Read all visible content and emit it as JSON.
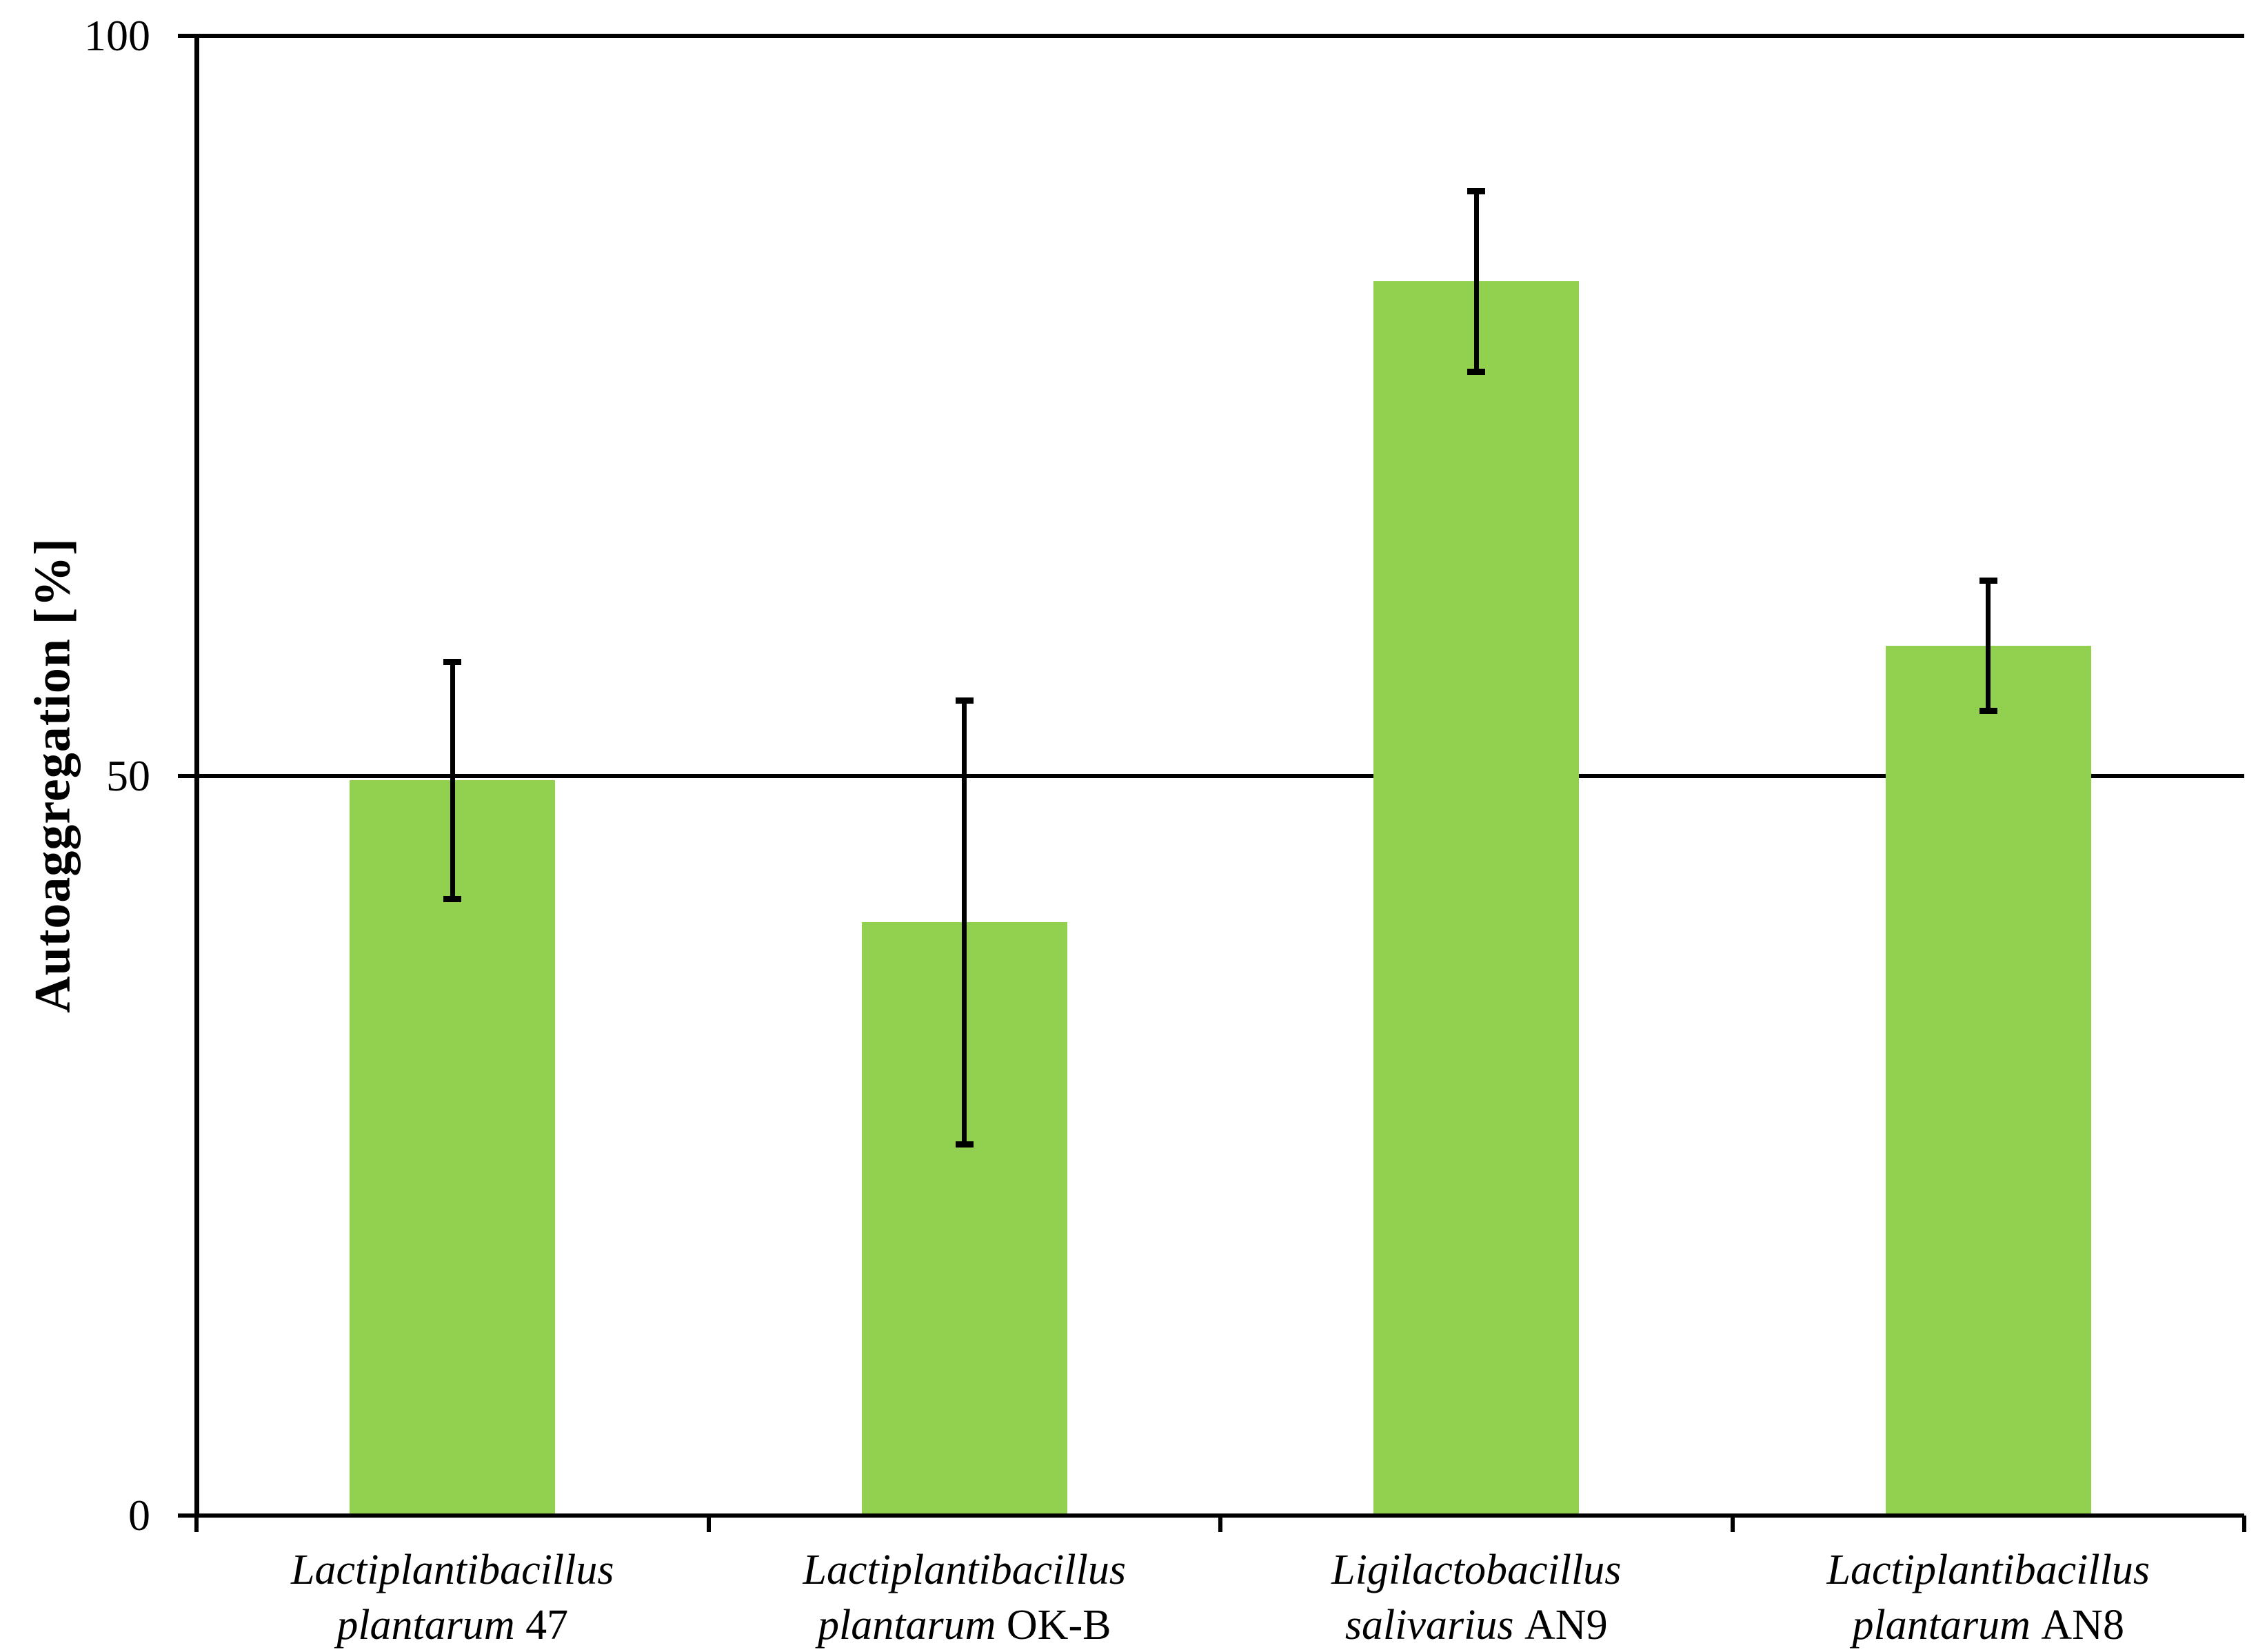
{
  "page": {
    "background_color": "#ffffff",
    "text_color": "#000000"
  },
  "chart_data": {
    "type": "bar",
    "title": "",
    "xlabel": "",
    "ylabel": "Autoaggregation [%]",
    "ylim": [
      0,
      100
    ],
    "yticks": [
      0,
      50,
      100
    ],
    "ytick_labels": [
      "0",
      "50",
      "100"
    ],
    "gridlines": {
      "horizontal_at": [
        0,
        50,
        100
      ],
      "vertical": "none"
    },
    "legend_position": "none",
    "bar_color": "#92D050",
    "axis_color": "#000000",
    "error_bar_color": "#000000",
    "categories": [
      {
        "genus": "Lactiplantibacillus",
        "species": "plantarum",
        "strain": "47"
      },
      {
        "genus": "Lactiplantibacillus",
        "species": "plantarum",
        "strain": "OK-B"
      },
      {
        "genus": "Ligilactobacillus",
        "species": "salivarius",
        "strain": "AN9"
      },
      {
        "genus": "Lactiplantibacillus",
        "species": "plantarum",
        "strain": "AN8"
      }
    ],
    "values": [
      49.7,
      40.1,
      83.4,
      58.8
    ],
    "error_bars_plus_minus": [
      8.0,
      15.0,
      6.1,
      4.4
    ]
  }
}
